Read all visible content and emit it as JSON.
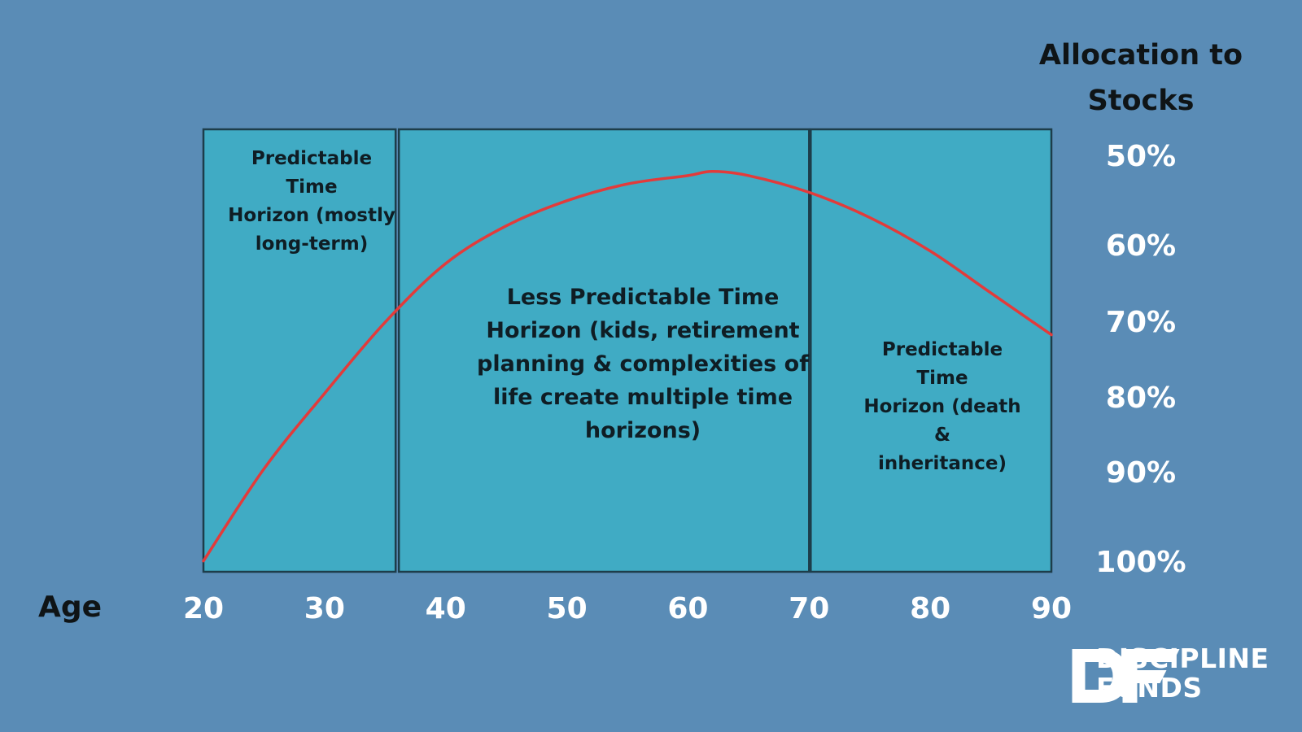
{
  "colors": {
    "background": "#5a8cb6",
    "zone_fill": "#40abc4",
    "zone_border": "#1d3d4a",
    "curve": "#e23b3b",
    "tick_text": "#ffffff",
    "label_text": "#0f1416"
  },
  "chart_data": {
    "type": "line",
    "title": "",
    "xlabel": "Age",
    "ylabel": "Allocation to Stocks",
    "xlim": [
      20,
      90
    ],
    "ylim": [
      100,
      50
    ],
    "y_inverted": true,
    "grid": false,
    "x_ticks": [
      "20",
      "30",
      "40",
      "50",
      "60",
      "70",
      "80",
      "90"
    ],
    "y_ticks": [
      "50%",
      "60%",
      "70%",
      "80%",
      "90%",
      "100%"
    ],
    "series": [
      {
        "x": [
          20,
          25,
          30,
          35,
          40,
          45,
          50,
          55,
          60,
          62,
          65,
          70,
          75,
          80,
          85,
          90
        ],
        "values": [
          99,
          88,
          79,
          70.5,
          63.5,
          59,
          56,
          54,
          53,
          52.5,
          53,
          55,
          58,
          62,
          67,
          72
        ],
        "color": "#e23b3b"
      }
    ],
    "regions": [
      {
        "x_start": 20,
        "x_end": 36,
        "label": "Predictable\nTime\nHorizon (mostly\nlong-term)"
      },
      {
        "x_start": 36,
        "x_end": 70,
        "label": "Less Predictable Time\nHorizon (kids, retirement\nplanning & complexities of\nlife create multiple time\nhorizons)"
      },
      {
        "x_start": 70,
        "x_end": 90,
        "label": "Predictable\nTime\nHorizon (death &\ninheritance)"
      }
    ]
  },
  "brand": {
    "logo_icon": "df-logo-icon",
    "line1": "DISCIPLINE",
    "line2": "FUNDS"
  }
}
